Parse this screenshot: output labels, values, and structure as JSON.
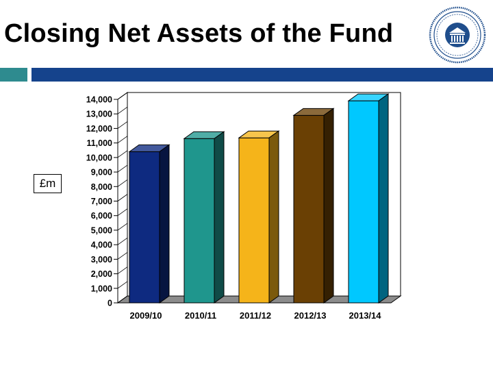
{
  "slide": {
    "title": "Closing Net Assets of the Fund",
    "unit_label": "£m",
    "logo_text": "STRATHCLYDE PENSION FUND"
  },
  "colors": {
    "accent_square": "#2e8b8f",
    "accent_bar": "#15438c",
    "logo": "#1f4e8c"
  },
  "chart_data": {
    "type": "bar",
    "style": "3d",
    "categories": [
      "2009/10",
      "2010/11",
      "2011/12",
      "2012/13",
      "2013/14"
    ],
    "values": [
      10400,
      11300,
      11350,
      12900,
      13900
    ],
    "series_colors": [
      "#0e2a80",
      "#1f968d",
      "#f5b41a",
      "#6a4004",
      "#00c8ff"
    ],
    "ylabel": "£m",
    "ylim": [
      0,
      14000
    ],
    "yticks": [
      0,
      1000,
      2000,
      3000,
      4000,
      5000,
      6000,
      7000,
      8000,
      9000,
      10000,
      11000,
      12000,
      13000,
      14000
    ],
    "ytick_labels": [
      "0",
      "1,000",
      "2,000",
      "3,000",
      "4,000",
      "5,000",
      "6,000",
      "7,000",
      "8,000",
      "9,000",
      "10,000",
      "11,000",
      "12,000",
      "13,000",
      "14,000"
    ],
    "grid": false,
    "legend": "none"
  }
}
